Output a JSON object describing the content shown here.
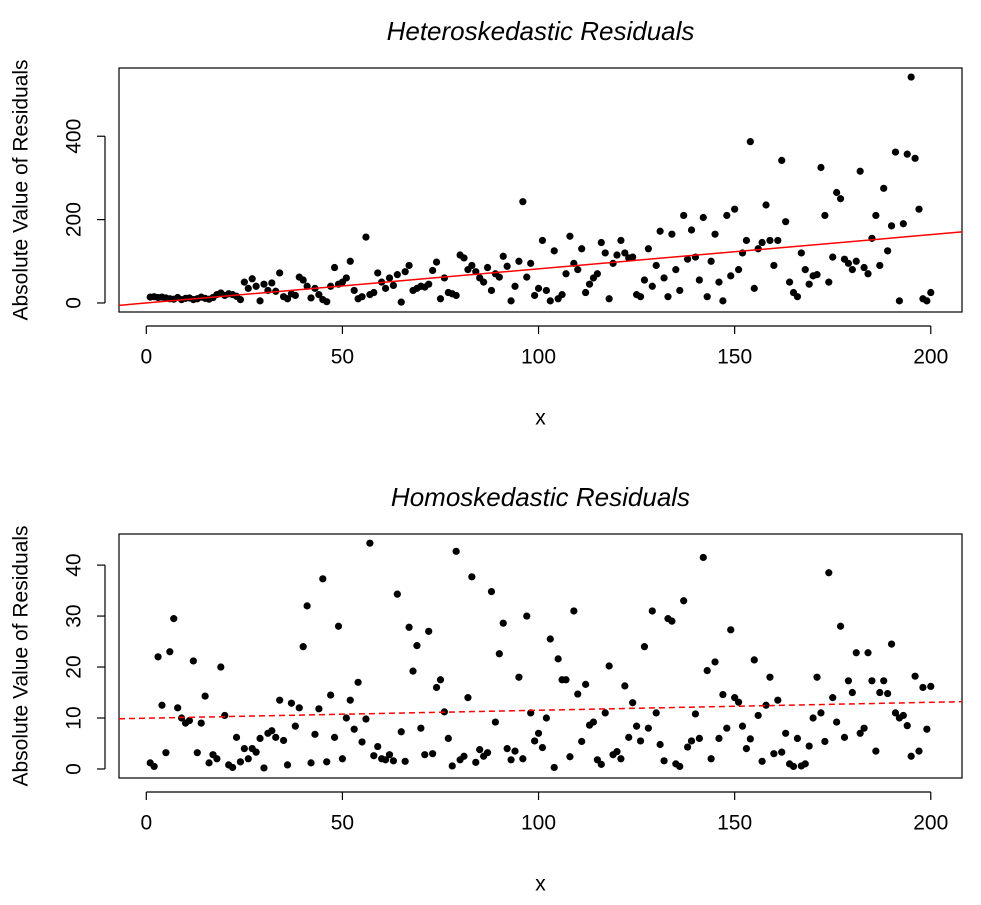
{
  "chart_data": [
    {
      "type": "scatter",
      "title": "Heteroskedastic Residuals",
      "xlabel": "x",
      "ylabel": "Absolute Value of Residuals",
      "x": [
        1,
        2,
        3,
        4,
        5,
        6,
        7,
        8,
        9,
        10,
        11,
        12,
        13,
        14,
        15,
        16,
        17,
        18,
        19,
        20,
        21,
        22,
        23,
        24,
        25,
        26,
        27,
        28,
        29,
        30,
        31,
        32,
        33,
        34,
        35,
        36,
        37,
        38,
        39,
        40,
        41,
        42,
        43,
        44,
        45,
        46,
        47,
        48,
        49,
        50,
        51,
        52,
        53,
        54,
        55,
        56,
        57,
        58,
        59,
        60,
        61,
        62,
        63,
        64,
        65,
        66,
        67,
        68,
        69,
        70,
        71,
        72,
        73,
        74,
        75,
        76,
        77,
        78,
        79,
        80,
        81,
        82,
        83,
        84,
        85,
        86,
        87,
        88,
        89,
        90,
        91,
        92,
        93,
        94,
        95,
        96,
        97,
        98,
        99,
        100,
        101,
        102,
        103,
        104,
        105,
        106,
        107,
        108,
        109,
        110,
        111,
        112,
        113,
        114,
        115,
        116,
        117,
        118,
        119,
        120,
        121,
        122,
        123,
        124,
        125,
        126,
        127,
        128,
        129,
        130,
        131,
        132,
        133,
        134,
        135,
        136,
        137,
        138,
        139,
        140,
        141,
        142,
        143,
        144,
        145,
        146,
        147,
        148,
        149,
        150,
        151,
        152,
        153,
        154,
        155,
        156,
        157,
        158,
        159,
        160,
        161,
        162,
        163,
        164,
        165,
        166,
        167,
        168,
        169,
        170,
        171,
        172,
        173,
        174,
        175,
        176,
        177,
        178,
        179,
        180,
        181,
        182,
        183,
        184,
        185,
        186,
        187,
        188,
        189,
        190,
        191,
        192,
        193,
        194,
        195,
        196,
        197,
        198,
        199,
        200
      ],
      "values": [
        14,
        15,
        13,
        14,
        12,
        10,
        9,
        13,
        8,
        11,
        12,
        8,
        10,
        14,
        11,
        9,
        13,
        20,
        24,
        18,
        22,
        20,
        16,
        8,
        50,
        35,
        58,
        40,
        5,
        45,
        30,
        48,
        28,
        72,
        15,
        10,
        22,
        18,
        62,
        55,
        40,
        12,
        35,
        20,
        8,
        3,
        40,
        85,
        45,
        50,
        60,
        100,
        30,
        10,
        15,
        158,
        20,
        25,
        72,
        50,
        35,
        60,
        42,
        68,
        2,
        75,
        90,
        30,
        35,
        40,
        38,
        45,
        78,
        98,
        10,
        60,
        25,
        22,
        18,
        115,
        108,
        80,
        90,
        75,
        60,
        50,
        85,
        30,
        70,
        62,
        112,
        88,
        5,
        40,
        100,
        243,
        62,
        95,
        18,
        35,
        150,
        30,
        5,
        125,
        10,
        20,
        70,
        160,
        95,
        80,
        130,
        25,
        45,
        60,
        70,
        145,
        120,
        10,
        95,
        115,
        150,
        120,
        108,
        110,
        20,
        15,
        55,
        130,
        40,
        90,
        172,
        60,
        15,
        165,
        80,
        30,
        210,
        105,
        175,
        110,
        55,
        205,
        15,
        100,
        165,
        50,
        5,
        210,
        65,
        225,
        80,
        120,
        150,
        387,
        35,
        130,
        145,
        235,
        150,
        90,
        150,
        342,
        195,
        50,
        25,
        15,
        120,
        80,
        45,
        65,
        68,
        325,
        210,
        50,
        110,
        265,
        250,
        105,
        95,
        80,
        100,
        316,
        85,
        70,
        155,
        210,
        90,
        275,
        125,
        185,
        362,
        5,
        190,
        357,
        542,
        347,
        225,
        10,
        5,
        25
      ],
      "color": "#000000",
      "xlim": [
        -6.96,
        207.96
      ],
      "ylim": [
        -21.7,
        563.7
      ],
      "xticks": [
        0,
        50,
        100,
        150,
        200
      ],
      "yticks": [
        0,
        200,
        400
      ],
      "fit_line": {
        "intercept": -0.1,
        "slope": 0.82,
        "color": "#ff0000",
        "dashed": false
      }
    },
    {
      "type": "scatter",
      "title": "Homoskedastic Residuals",
      "xlabel": "x",
      "ylabel": "Absolute Value of Residuals",
      "x": [
        1,
        2,
        3,
        4,
        5,
        6,
        7,
        8,
        9,
        10,
        11,
        12,
        13,
        14,
        15,
        16,
        17,
        18,
        19,
        20,
        21,
        22,
        23,
        24,
        25,
        26,
        27,
        28,
        29,
        30,
        31,
        32,
        33,
        34,
        35,
        36,
        37,
        38,
        39,
        40,
        41,
        42,
        43,
        44,
        45,
        46,
        47,
        48,
        49,
        50,
        51,
        52,
        53,
        54,
        55,
        56,
        57,
        58,
        59,
        60,
        61,
        62,
        63,
        64,
        65,
        66,
        67,
        68,
        69,
        70,
        71,
        72,
        73,
        74,
        75,
        76,
        77,
        78,
        79,
        80,
        81,
        82,
        83,
        84,
        85,
        86,
        87,
        88,
        89,
        90,
        91,
        92,
        93,
        94,
        95,
        96,
        97,
        98,
        99,
        100,
        101,
        102,
        103,
        104,
        105,
        106,
        107,
        108,
        109,
        110,
        111,
        112,
        113,
        114,
        115,
        116,
        117,
        118,
        119,
        120,
        121,
        122,
        123,
        124,
        125,
        126,
        127,
        128,
        129,
        130,
        131,
        132,
        133,
        134,
        135,
        136,
        137,
        138,
        139,
        140,
        141,
        142,
        143,
        144,
        145,
        146,
        147,
        148,
        149,
        150,
        151,
        152,
        153,
        154,
        155,
        156,
        157,
        158,
        159,
        160,
        161,
        162,
        163,
        164,
        165,
        166,
        167,
        168,
        169,
        170,
        171,
        172,
        173,
        174,
        175,
        176,
        177,
        178,
        179,
        180,
        181,
        182,
        183,
        184,
        185,
        186,
        187,
        188,
        189,
        190,
        191,
        192,
        193,
        194,
        195,
        196,
        197,
        198,
        199,
        200
      ],
      "values": [
        1.2,
        0.5,
        22,
        12.5,
        3.2,
        23,
        29.5,
        12,
        10,
        9,
        9.5,
        21.2,
        3.2,
        9,
        14.3,
        1.2,
        2.8,
        2,
        20,
        10.5,
        0.8,
        0.3,
        6.2,
        1.4,
        4,
        2,
        4,
        3.3,
        6,
        0.2,
        7,
        7.5,
        6.2,
        13.5,
        5.6,
        0.8,
        12.9,
        8.4,
        12,
        24,
        32,
        1.2,
        6.8,
        11.8,
        37.3,
        1.4,
        14.5,
        6.2,
        28,
        2,
        10,
        13.5,
        7.8,
        17,
        5.3,
        9.8,
        44.3,
        2.6,
        4.4,
        2,
        1.8,
        2.8,
        1.6,
        34.3,
        7.3,
        1.5,
        27.8,
        19.2,
        24.2,
        8,
        2.8,
        27,
        3,
        16,
        17.5,
        11.2,
        6,
        0.6,
        42.7,
        1.8,
        2.5,
        14,
        37.7,
        1.3,
        3.8,
        2.5,
        3.2,
        34.8,
        9.2,
        22.6,
        28.6,
        4,
        1.8,
        3.5,
        18,
        2,
        30,
        11,
        5.5,
        7,
        4.2,
        10,
        25.5,
        0.3,
        21.6,
        17.5,
        17.5,
        2.4,
        31,
        14.7,
        5.4,
        16.6,
        8.6,
        9.2,
        1.8,
        0.9,
        11,
        20.2,
        2.8,
        3.4,
        2,
        16.3,
        6.2,
        13,
        8.4,
        5.5,
        24,
        8,
        31,
        11,
        4.8,
        1.6,
        29.5,
        29,
        1,
        0.5,
        33,
        4.3,
        5.5,
        10.8,
        6,
        41.5,
        19.3,
        2,
        21,
        6,
        14.6,
        8,
        27.3,
        14,
        13.1,
        8.4,
        4,
        5.9,
        21.4,
        10.5,
        1.5,
        12.5,
        18,
        3,
        13.5,
        3.3,
        7,
        1,
        0.5,
        6,
        0.6,
        1,
        4.5,
        10,
        18,
        11,
        5.4,
        38.5,
        14,
        9.2,
        28,
        6.2,
        17.3,
        15,
        22.8,
        7,
        8,
        22.8,
        17.3,
        3.5,
        15,
        17.3,
        14.8,
        24.5,
        11,
        10,
        10.5,
        8.5,
        2.5,
        18.2,
        3.5,
        16,
        7.8,
        16.2
      ],
      "color": "#000000",
      "xlim": [
        -6.96,
        207.96
      ],
      "ylim": [
        -1.77,
        46.1
      ],
      "xticks": [
        0,
        50,
        100,
        150,
        200
      ],
      "yticks": [
        0,
        10,
        20,
        30,
        40
      ],
      "fit_line": {
        "intercept": 9.96,
        "slope": 0.0156,
        "color": "#ff0000",
        "dashed": true
      }
    }
  ]
}
